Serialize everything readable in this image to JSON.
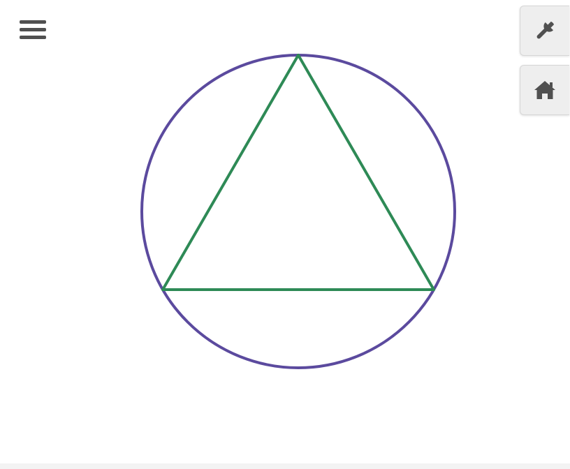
{
  "colors": {
    "circle": "#5b4a9e",
    "triangle": "#2e8a56",
    "icon": "#505050",
    "button_bg": "#eeeeee"
  },
  "icons": {
    "menu": "hamburger-menu-icon",
    "settings": "wrench-icon",
    "home": "home-icon"
  },
  "toolbar": {
    "buttons": [
      "settings",
      "home"
    ]
  },
  "drawing": {
    "shapes": [
      "circle",
      "triangle"
    ]
  }
}
